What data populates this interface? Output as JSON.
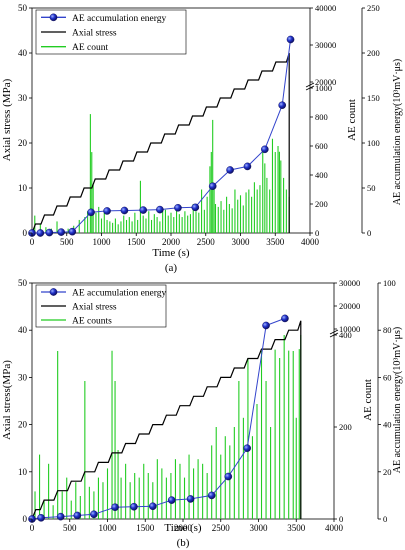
{
  "chart_data": [
    {
      "type": "line",
      "panel_label": "(a)",
      "xlabel": "Time  (s)",
      "ylabel_left": "Axial stress (MPa)",
      "ylabel_right_count": "AE count",
      "ylabel_right_energy": "AE accumulation  energy(10³mV·μs)",
      "xlim": [
        0,
        4000
      ],
      "ylim_left": [
        0,
        50
      ],
      "x_ticks": [
        "0",
        "500",
        "1000",
        "1500",
        "2000",
        "2500",
        "3000",
        "3500",
        "4000"
      ],
      "y_left_ticks": [
        "0",
        "10",
        "20",
        "30",
        "40",
        "50"
      ],
      "count_axis": {
        "lower_ticks": [
          "0",
          "200",
          "400",
          "600",
          "800",
          "1000"
        ],
        "upper_ticks": [
          "20000",
          "30000",
          "40000"
        ],
        "lower_range": [
          0,
          1000
        ],
        "upper_range": [
          20000,
          40000
        ]
      },
      "energy_ticks": [
        "0",
        "50",
        "100",
        "150",
        "200",
        "250"
      ],
      "energy_range": [
        0,
        250
      ],
      "legend": [
        "AE  accumulation  energy",
        "Axial stress",
        "AE count"
      ],
      "series": [
        {
          "name": "AE  accumulation  energy",
          "axis": "energy",
          "color": "#1a1aa6",
          "x": [
            0,
            120,
            250,
            420,
            580,
            850,
            1080,
            1330,
            1600,
            1840,
            2100,
            2350,
            2600,
            2850,
            3100,
            3350,
            3600,
            3720
          ],
          "y": [
            0,
            0,
            0.5,
            1,
            1.5,
            23,
            24.5,
            25,
            25.5,
            26,
            28,
            28.5,
            52,
            70,
            74,
            93,
            142,
            215
          ]
        },
        {
          "name": "Axial stress",
          "axis": "left",
          "color": "#000000",
          "x": [
            0,
            50,
            130,
            180,
            310,
            360,
            500,
            550,
            700,
            750,
            860,
            910,
            1060,
            1110,
            1260,
            1310,
            1460,
            1510,
            1660,
            1710,
            1860,
            1910,
            2060,
            2110,
            2260,
            2310,
            2460,
            2510,
            2660,
            2710,
            2860,
            2910,
            3060,
            3110,
            3260,
            3310,
            3460,
            3510,
            3660,
            3700,
            3700
          ],
          "y": [
            0,
            2,
            2,
            4,
            4,
            6,
            6,
            8,
            8,
            10,
            10,
            12,
            12,
            14,
            14,
            16,
            16,
            18,
            18,
            20,
            20,
            22,
            22,
            24,
            24,
            26,
            26,
            28,
            28,
            30,
            30,
            32,
            32,
            34,
            34,
            36,
            36,
            38,
            38,
            40,
            0
          ]
        },
        {
          "name": "AE count",
          "axis": "count",
          "color": "#22cc22",
          "x": [
            40,
            120,
            200,
            280,
            360,
            440,
            520,
            600,
            680,
            760,
            800,
            840,
            860,
            880,
            920,
            960,
            1000,
            1040,
            1080,
            1120,
            1160,
            1200,
            1240,
            1280,
            1320,
            1360,
            1400,
            1440,
            1480,
            1520,
            1560,
            1600,
            1640,
            1680,
            1720,
            1760,
            1800,
            1840,
            1880,
            1920,
            1960,
            2000,
            2040,
            2080,
            2120,
            2160,
            2200,
            2240,
            2280,
            2320,
            2360,
            2400,
            2440,
            2480,
            2520,
            2560,
            2580,
            2600,
            2620,
            2640,
            2680,
            2720,
            2760,
            2800,
            2840,
            2880,
            2920,
            2960,
            3000,
            3040,
            3080,
            3120,
            3160,
            3200,
            3240,
            3280,
            3320,
            3350,
            3380,
            3420,
            3460,
            3500,
            3540,
            3560,
            3580,
            3620,
            3660,
            3700
          ],
          "y": [
            120,
            60,
            40,
            30,
            80,
            20,
            30,
            50,
            90,
            110,
            150,
            820,
            1060,
            330,
            140,
            180,
            100,
            140,
            90,
            80,
            70,
            100,
            60,
            80,
            120,
            90,
            110,
            80,
            140,
            90,
            360,
            120,
            100,
            150,
            90,
            130,
            110,
            80,
            150,
            160,
            120,
            140,
            110,
            160,
            130,
            110,
            150,
            120,
            130,
            200,
            150,
            140,
            300,
            160,
            250,
            460,
            1090,
            780,
            300,
            200,
            180,
            220,
            160,
            250,
            200,
            170,
            300,
            230,
            260,
            190,
            280,
            300,
            250,
            350,
            300,
            330,
            1050,
            480,
            380,
            300,
            650,
            1080,
            600,
            1140,
            500,
            380,
            300,
            250
          ]
        }
      ]
    },
    {
      "type": "line",
      "panel_label": "(b)",
      "xlabel": "Time  (s)",
      "ylabel_left": "Axial stress(MPa)",
      "ylabel_right_count": "AE count",
      "ylabel_right_energy": "AE accumulation  energy(10³mV·μs)",
      "xlim": [
        0,
        4000
      ],
      "ylim_left": [
        0,
        50
      ],
      "x_ticks": [
        "0",
        "500",
        "1000",
        "1500",
        "2000",
        "2500",
        "3000",
        "3500",
        "4000"
      ],
      "y_left_ticks": [
        "0",
        "10",
        "20",
        "30",
        "40",
        "50"
      ],
      "count_axis": {
        "lower_ticks": [
          "0",
          "200",
          "400"
        ],
        "upper_ticks": [
          "10000",
          "20000",
          "30000"
        ],
        "lower_range": [
          0,
          400
        ],
        "upper_range": [
          10000,
          30000
        ]
      },
      "energy_ticks": [
        "0",
        "20",
        "40",
        "60",
        "80",
        "100"
      ],
      "energy_range": [
        0,
        100
      ],
      "legend": [
        "AE  accumulation  energy",
        "Axial stress",
        "AE   counts"
      ],
      "series": [
        {
          "name": "AE  accumulation  energy",
          "axis": "energy",
          "color": "#1a1aa6",
          "x": [
            0,
            120,
            380,
            600,
            820,
            1100,
            1350,
            1600,
            1850,
            2100,
            2380,
            2600,
            2850,
            3100,
            3350
          ],
          "y": [
            0,
            0.5,
            1,
            1.5,
            2,
            5,
            5.2,
            5.4,
            8,
            8.5,
            10,
            18,
            30,
            82,
            85
          ]
        },
        {
          "name": "Axial stress",
          "axis": "left",
          "color": "#000000",
          "x": [
            0,
            50,
            110,
            160,
            290,
            340,
            470,
            520,
            650,
            700,
            830,
            880,
            1010,
            1060,
            1190,
            1240,
            1370,
            1420,
            1550,
            1600,
            1730,
            1780,
            1910,
            1960,
            2090,
            2140,
            2270,
            2320,
            2450,
            2500,
            2630,
            2680,
            2810,
            2860,
            2990,
            3040,
            3170,
            3220,
            3350,
            3400,
            3520,
            3560,
            3560
          ],
          "y": [
            0,
            2,
            2,
            4,
            4,
            6,
            6,
            8,
            8,
            10,
            10,
            12,
            12,
            14,
            14,
            16,
            16,
            18,
            18,
            20,
            20,
            22,
            22,
            24,
            24,
            26,
            26,
            28,
            28,
            30,
            30,
            32,
            32,
            34,
            34,
            36,
            36,
            38,
            38,
            40,
            40,
            42,
            0
          ]
        },
        {
          "name": "AE   counts",
          "axis": "count",
          "color": "#22cc22",
          "x": [
            40,
            100,
            160,
            220,
            280,
            340,
            400,
            460,
            520,
            580,
            640,
            700,
            760,
            820,
            880,
            940,
            1000,
            1060,
            1100,
            1140,
            1180,
            1240,
            1300,
            1360,
            1420,
            1480,
            1540,
            1600,
            1660,
            1720,
            1780,
            1840,
            1900,
            1960,
            2020,
            2080,
            2140,
            2200,
            2260,
            2320,
            2380,
            2440,
            2500,
            2560,
            2620,
            2680,
            2740,
            2800,
            2860,
            2920,
            2980,
            3040,
            3100,
            3160,
            3220,
            3280,
            3340,
            3400,
            3460,
            3500,
            3540,
            3560
          ],
          "y": [
            60,
            140,
            40,
            120,
            30,
            430,
            60,
            90,
            40,
            80,
            50,
            300,
            70,
            60,
            90,
            80,
            110,
            560,
            300,
            150,
            90,
            120,
            80,
            100,
            90,
            120,
            100,
            80,
            130,
            110,
            90,
            100,
            130,
            120,
            90,
            140,
            110,
            130,
            120,
            100,
            160,
            200,
            140,
            180,
            160,
            200,
            300,
            220,
            350,
            180,
            250,
            420,
            300,
            200,
            1040,
            350,
            400,
            600,
            450,
            220,
            1240,
            400
          ]
        }
      ]
    }
  ]
}
